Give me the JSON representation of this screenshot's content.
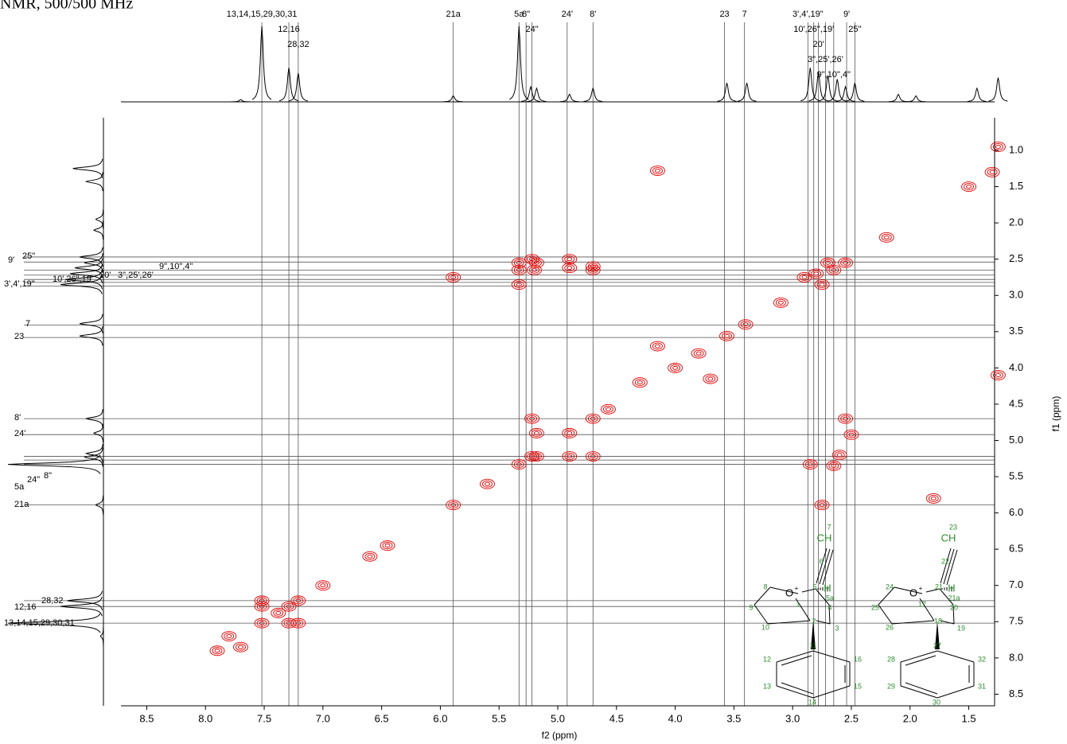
{
  "chart_data": {
    "type": "nmr2d",
    "title": "NMR, 500/500 MHz",
    "xlabel": "f2 (ppm)",
    "ylabel": "f1 (ppm)",
    "xlim": [
      8.72,
      1.28
    ],
    "ylim": [
      0.55,
      8.66
    ],
    "xticks": [
      8.5,
      {
        "value": 8,
        "label": "8.0"
      },
      7.5,
      {
        "value": 7,
        "label": "7.0"
      },
      6.5,
      {
        "value": 6,
        "label": "6.0"
      },
      5.5,
      {
        "value": 5,
        "label": "5.0"
      },
      4.5,
      {
        "value": 4,
        "label": "4.0"
      },
      3.5,
      {
        "value": 3,
        "label": "3.0"
      },
      2.5,
      {
        "value": 2,
        "label": "2.0"
      },
      1.5
    ],
    "yticks": [
      {
        "value": 1,
        "label": "1.0"
      },
      1.5,
      {
        "value": 2,
        "label": "2.0"
      },
      2.5,
      {
        "value": 3,
        "label": "3.0"
      },
      3.5,
      {
        "value": 4,
        "label": "4.0"
      },
      4.5,
      {
        "value": 5,
        "label": "5.0"
      },
      5.5,
      {
        "value": 6,
        "label": "6.0"
      },
      6.5,
      {
        "value": 7,
        "label": "7.0"
      },
      7.5,
      {
        "value": 8,
        "label": "8.0"
      },
      8.5
    ],
    "color": "#e00000",
    "labels": [
      {
        "text": "13,14,15,29,30,31",
        "ppm": 7.52
      },
      {
        "text": "12,16",
        "ppm": 7.29
      },
      {
        "text": "28,32",
        "ppm": 7.21
      },
      {
        "text": "21a",
        "ppm": 5.89
      },
      {
        "text": "5a",
        "ppm": 5.33
      },
      {
        "text": "8\"",
        "ppm": 5.27
      },
      {
        "text": "24\"",
        "ppm": 5.22
      },
      {
        "text": "24'",
        "ppm": 4.92
      },
      {
        "text": "8'",
        "ppm": 4.7
      },
      {
        "text": "23",
        "ppm": 3.58
      },
      {
        "text": "7",
        "ppm": 3.41
      },
      {
        "text": "3',4',19\"",
        "ppm": 2.87
      },
      {
        "text": "10',26\",19'",
        "ppm": 2.82
      },
      {
        "text": "20'",
        "ppm": 2.78
      },
      {
        "text": "3\",25',26'",
        "ppm": 2.72
      },
      {
        "text": "9\",10\",4\"",
        "ppm": 2.65
      },
      {
        "text": "9'",
        "ppm": 2.54
      },
      {
        "text": "25\"",
        "ppm": 2.47
      }
    ],
    "projection": {
      "x": [
        7.7,
        7.52,
        7.29,
        7.21,
        5.89,
        5.33,
        5.23,
        5.18,
        4.9,
        4.7,
        3.56,
        3.39,
        2.85,
        2.78,
        2.7,
        2.62,
        2.55,
        2.47,
        2.1,
        1.95,
        1.43,
        1.25
      ],
      "heights": [
        3,
        100,
        45,
        38,
        8,
        100,
        20,
        18,
        10,
        18,
        25,
        25,
        45,
        40,
        35,
        30,
        20,
        25,
        10,
        8,
        18,
        32
      ]
    },
    "peaks": {
      "x": [
        7.52,
        7.29,
        7.21,
        7.0,
        7.38,
        5.89,
        5.33,
        5.22,
        4.9,
        4.7,
        3.56,
        3.4,
        2.8,
        2.65,
        2.75,
        2.55,
        2.9,
        2.7,
        5.33,
        5.33,
        5.33,
        5.22,
        5.18,
        5.2,
        4.9,
        4.9,
        4.7,
        4.7,
        5.89,
        5.22,
        5.18,
        5.18,
        4.9,
        4.7,
        2.55,
        2.5,
        2.6,
        2.85,
        2.65,
        2.75,
        7.52,
        7.21,
        7.29,
        7.52,
        7.8,
        7.9,
        7.7,
        4.15,
        1.25,
        1.25,
        4.15,
        3.7,
        1.8,
        6.45,
        6.6,
        5.6,
        4.57,
        3.1,
        2.2,
        1.5,
        1.3,
        4.0,
        3.8,
        4.3
      ],
      "y": [
        7.52,
        7.29,
        7.21,
        7.0,
        7.38,
        5.89,
        5.33,
        5.22,
        4.9,
        4.7,
        3.56,
        3.4,
        2.7,
        2.65,
        2.85,
        2.55,
        2.75,
        2.55,
        2.55,
        2.65,
        2.85,
        2.5,
        2.55,
        2.65,
        2.5,
        2.62,
        2.6,
        2.65,
        2.75,
        4.7,
        4.9,
        5.22,
        5.22,
        5.22,
        4.7,
        4.92,
        5.2,
        5.33,
        5.35,
        5.89,
        7.21,
        7.52,
        7.52,
        7.29,
        7.7,
        7.9,
        7.85,
        1.28,
        0.95,
        4.1,
        3.7,
        4.15,
        5.8,
        6.45,
        6.6,
        5.6,
        4.57,
        3.1,
        2.2,
        1.5,
        1.3,
        4.0,
        3.8,
        4.2
      ]
    },
    "structures": [
      {
        "labels": [
          "7",
          "CH",
          "6",
          "8",
          "O",
          "+",
          "5",
          "H",
          "5a",
          "1",
          "4",
          "9",
          "2",
          "10",
          "3",
          "11",
          "12",
          "16",
          "13",
          "15",
          "14"
        ]
      },
      {
        "labels": [
          "23",
          "CH",
          "22",
          "24",
          "O",
          "+",
          "21",
          "H",
          "21a",
          "17",
          "20",
          "25",
          "18",
          "26",
          "19",
          "27",
          "28",
          "32",
          "29",
          "31",
          "30"
        ]
      }
    ]
  }
}
